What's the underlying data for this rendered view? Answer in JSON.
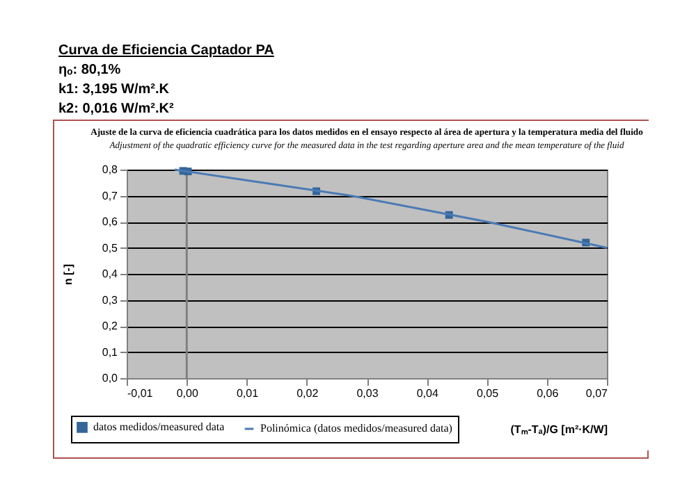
{
  "chart_data": {
    "type": "scatter",
    "title": "Ajuste de la curva de eficiencia cuadrática para los datos medidos en el ensayo respecto al área de apertura y la temperatura media del fluido",
    "subtitle": "Adjustment of the quadratic efficiency curve for the measured data in the test regarding aperture area and the mean temperature of the fluid",
    "xlabel": "(Tₘ-Tₐ)/G [m²·K/W]",
    "ylabel": "n [-]",
    "annotations": [
      "Curva de Eficiencia Captador PA",
      "ηₒ: 80,1%",
      "k1: 3,195 W/m².K",
      "k2: 0,016 W/m².K²"
    ],
    "series": [
      {
        "name": "datos medidos/measured data",
        "type": "scatter",
        "marker": "square",
        "color": "#336699",
        "x": [
          -0.0006,
          0.0002,
          0.0216,
          0.0437,
          0.0665
        ],
        "values": [
          0.795,
          0.793,
          0.717,
          0.626,
          0.52
        ]
      },
      {
        "name": "Polinómica (datos medidos/measured data)",
        "type": "line",
        "color": "#4a7ab5",
        "x": [
          -0.002,
          0.0,
          0.0273,
          0.05,
          0.07
        ],
        "values": [
          0.8,
          0.793,
          0.7,
          0.6,
          0.5
        ]
      }
    ],
    "xlim": [
      -0.01,
      0.07
    ],
    "ylim": [
      0,
      0.8
    ],
    "xticks": [
      {
        "value": -0.01,
        "label": "-0,01"
      },
      {
        "value": 0,
        "label": "0,00"
      },
      {
        "value": 0.01,
        "label": "0,01"
      },
      {
        "value": 0.02,
        "label": "0,02"
      },
      {
        "value": 0.03,
        "label": "0,03"
      },
      {
        "value": 0.04,
        "label": "0,04"
      },
      {
        "value": 0.05,
        "label": "0,05"
      },
      {
        "value": 0.06,
        "label": "0,06"
      },
      {
        "value": 0.07,
        "label": "0,07"
      }
    ],
    "yticks": [
      {
        "value": 0,
        "label": "0,0"
      },
      {
        "value": 0.1,
        "label": "0,1"
      },
      {
        "value": 0.2,
        "label": "0,2"
      },
      {
        "value": 0.3,
        "label": "0,3"
      },
      {
        "value": 0.4,
        "label": "0,4"
      },
      {
        "value": 0.5,
        "label": "0,5"
      },
      {
        "value": 0.6,
        "label": "0,6"
      },
      {
        "value": 0.7,
        "label": "0,7"
      },
      {
        "value": 0.8,
        "label": "0,8"
      }
    ],
    "ref_lines": [
      {
        "axis": "x",
        "value": 0,
        "color": "#808080"
      }
    ],
    "grid": "y",
    "legend": "bottom",
    "line_style": "solid"
  }
}
